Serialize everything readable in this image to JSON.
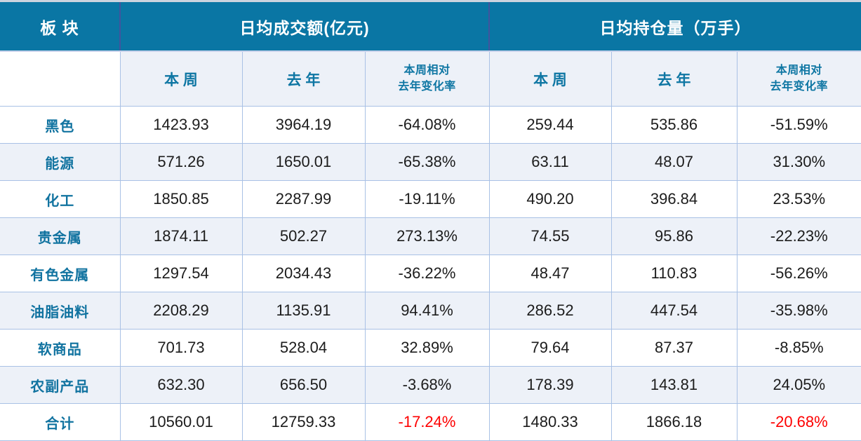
{
  "colors": {
    "header_bg": "#0a76a4",
    "accent_text": "#0e76a3",
    "row_alt_bg": "#edf1f8",
    "grid_border": "#a9c1e5",
    "header_divider": "#42549e",
    "negative_total_text": "#fe0000"
  },
  "header": {
    "sector": "板 块",
    "group_turnover": "日均成交额(亿元)",
    "group_open_interest": "日均持仓量（万手）",
    "sub_week": "本 周",
    "sub_lastyear": "去 年",
    "sub_change_line1": "本周相对",
    "sub_change_line2": "去年变化率"
  },
  "chart_data": {
    "type": "table",
    "column_groups": [
      "板 块",
      "日均成交额(亿元)",
      "日均持仓量（万手）"
    ],
    "columns": [
      "本 周",
      "去 年",
      "本周相对去年变化率",
      "本 周",
      "去 年",
      "本周相对去年变化率"
    ],
    "rows": [
      {
        "label": "黑色",
        "cells": [
          "1423.93",
          "3964.19",
          "-64.08%",
          "259.44",
          "535.86",
          "-51.59%"
        ]
      },
      {
        "label": "能源",
        "cells": [
          "571.26",
          "1650.01",
          "-65.38%",
          "63.11",
          "48.07",
          "31.30%"
        ]
      },
      {
        "label": "化工",
        "cells": [
          "1850.85",
          "2287.99",
          "-19.11%",
          "490.20",
          "396.84",
          "23.53%"
        ]
      },
      {
        "label": "贵金属",
        "cells": [
          "1874.11",
          "502.27",
          "273.13%",
          "74.55",
          "95.86",
          "-22.23%"
        ]
      },
      {
        "label": "有色金属",
        "cells": [
          "1297.54",
          "2034.43",
          "-36.22%",
          "48.47",
          "110.83",
          "-56.26%"
        ]
      },
      {
        "label": "油脂油料",
        "cells": [
          "2208.29",
          "1135.91",
          "94.41%",
          "286.52",
          "447.54",
          "-35.98%"
        ]
      },
      {
        "label": "软商品",
        "cells": [
          "701.73",
          "528.04",
          "32.89%",
          "79.64",
          "87.37",
          "-8.85%"
        ]
      },
      {
        "label": "农副产品",
        "cells": [
          "632.30",
          "656.50",
          "-3.68%",
          "178.39",
          "143.81",
          "24.05%"
        ]
      },
      {
        "label": "合计",
        "cells": [
          "10560.01",
          "12759.33",
          "-17.24%",
          "1480.33",
          "1866.18",
          "-20.68%"
        ]
      }
    ]
  }
}
